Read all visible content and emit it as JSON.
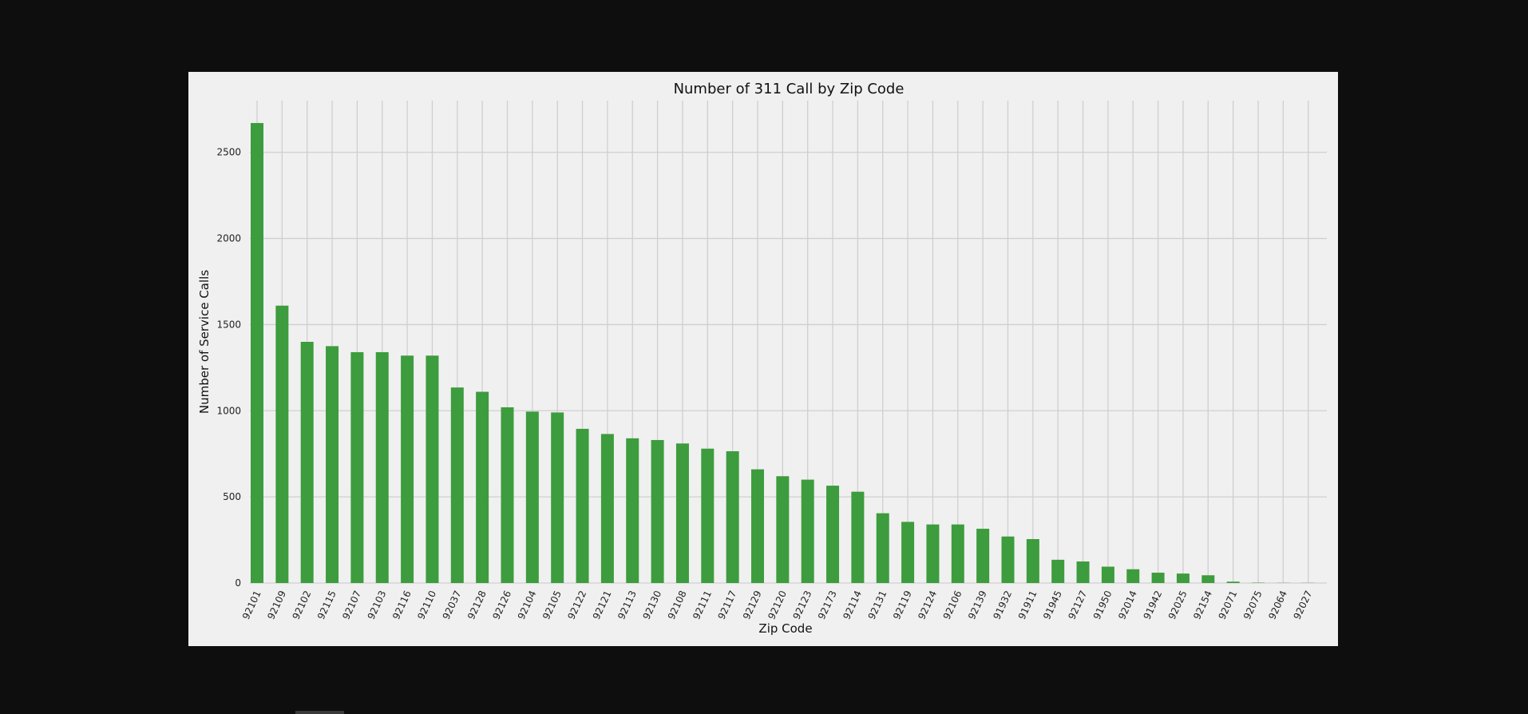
{
  "chart_data": {
    "type": "bar",
    "title": "Number of 311 Call by Zip Code",
    "xlabel": "Zip Code",
    "ylabel": "Number of Service Calls",
    "ylim": [
      0,
      2800
    ],
    "yticks": [
      0,
      500,
      1000,
      1500,
      2000,
      2500
    ],
    "grid": true,
    "color": "#3d9c3d",
    "background": "#f0f0f0",
    "categories": [
      "92101",
      "92109",
      "92102",
      "92115",
      "92107",
      "92103",
      "92116",
      "92110",
      "92037",
      "92128",
      "92126",
      "92104",
      "92105",
      "92122",
      "92121",
      "92113",
      "92130",
      "92108",
      "92111",
      "92117",
      "92129",
      "92120",
      "92123",
      "92173",
      "92114",
      "92131",
      "92119",
      "92124",
      "92106",
      "92139",
      "91932",
      "91911",
      "91945",
      "92127",
      "91950",
      "92014",
      "91942",
      "92025",
      "92154",
      "92071",
      "92075",
      "92064",
      "92027"
    ],
    "values": [
      2670,
      1610,
      1400,
      1375,
      1340,
      1340,
      1320,
      1320,
      1135,
      1110,
      1020,
      995,
      990,
      895,
      865,
      840,
      830,
      810,
      780,
      765,
      660,
      620,
      600,
      565,
      530,
      405,
      355,
      340,
      340,
      315,
      270,
      255,
      135,
      125,
      95,
      80,
      60,
      55,
      45,
      8,
      2,
      1,
      1
    ]
  }
}
